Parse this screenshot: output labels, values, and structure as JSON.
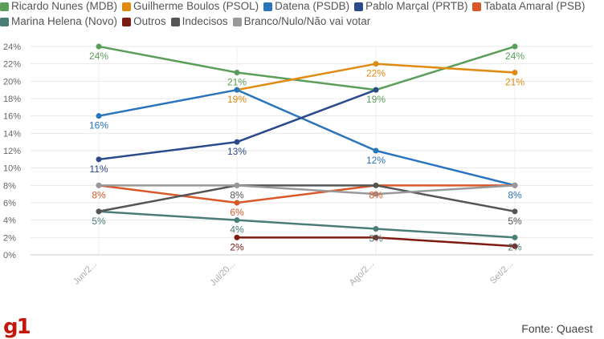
{
  "chart_data": {
    "type": "line",
    "title": "",
    "xlabel": "",
    "ylabel": "",
    "categories": [
      "Jun/2...",
      "Jul/20...",
      "Ago/2...",
      "Set/2..."
    ],
    "ylim": [
      0,
      24
    ],
    "yticks": [
      "0%",
      "2%",
      "4%",
      "6%",
      "8%",
      "10%",
      "12%",
      "14%",
      "16%",
      "18%",
      "20%",
      "22%",
      "24%"
    ],
    "grid": true,
    "legend_position": "top",
    "series": [
      {
        "name": "Ricardo Nunes (MDB)",
        "color": "#5a9e5a",
        "values": [
          24,
          21,
          19,
          24
        ],
        "labels": [
          "24%",
          "21%",
          "19%",
          "24%"
        ]
      },
      {
        "name": "Guilherme Boulos (PSOL)",
        "color": "#e08a10",
        "values": [
          null,
          19,
          22,
          21
        ],
        "labels": [
          null,
          "19%",
          "22%",
          "21%"
        ]
      },
      {
        "name": "Datena (PSDB)",
        "color": "#2a74bb",
        "values": [
          16,
          19,
          12,
          8
        ],
        "labels": [
          "16%",
          null,
          "12%",
          "8%"
        ]
      },
      {
        "name": "Pablo Marçal (PRTB)",
        "color": "#2b4a8a",
        "values": [
          11,
          13,
          19,
          null
        ],
        "labels": [
          "11%",
          "13%",
          null,
          null
        ]
      },
      {
        "name": "Tabata Amaral (PSB)",
        "color": "#d9582a",
        "values": [
          8,
          6,
          8,
          8
        ],
        "labels": [
          "8%",
          "6%",
          "8%",
          null
        ]
      },
      {
        "name": "Marina Helena (Novo)",
        "color": "#4a7d78",
        "values": [
          5,
          4,
          3,
          2
        ],
        "labels": [
          "5%",
          "4%",
          "3%",
          "2%"
        ]
      },
      {
        "name": "Outros",
        "color": "#7d1a12",
        "values": [
          null,
          2,
          2,
          1
        ],
        "labels": [
          null,
          "2%",
          null,
          null
        ]
      },
      {
        "name": "Indecisos",
        "color": "#555555",
        "values": [
          5,
          8,
          8,
          5
        ],
        "labels": [
          null,
          "8%",
          null,
          "5%"
        ]
      },
      {
        "name": "Branco/Nulo/Não vai votar",
        "color": "#999999",
        "values": [
          8,
          8,
          7,
          8
        ],
        "labels": [
          null,
          null,
          null,
          null
        ]
      }
    ],
    "source": "Fonte: Quaest",
    "logo": "g1"
  }
}
